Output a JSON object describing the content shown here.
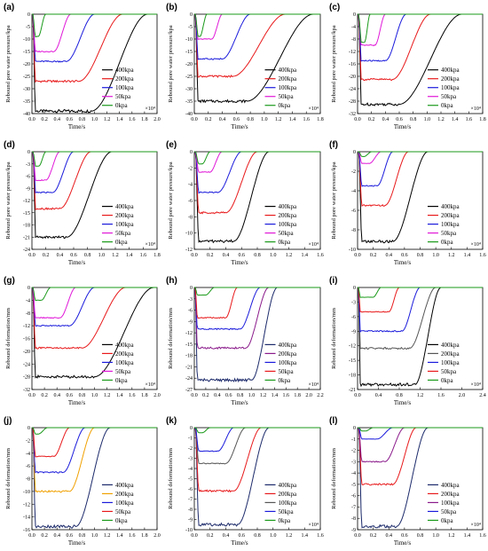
{
  "colors": {
    "400kpa": "#000000",
    "200kpa": "#e8191b",
    "100kpa": "#1b1bdc",
    "50kpa": "#e018d8",
    "0kpa": "#1a9a1a",
    "50kpa_alt": "#f0a000",
    "25kpa_alt": "#888888"
  },
  "chart_data": [
    {
      "panel": "(a)",
      "type": "line",
      "ylabel": "Rebound pore water pressure/kpa",
      "xlabel": "Time/s",
      "x_multiplier": "×10⁴",
      "xlim": [
        0,
        2.0
      ],
      "xticks": [
        "0.0",
        "0.2",
        "0.4",
        "0.6",
        "0.8",
        "1.0",
        "1.2",
        "1.4",
        "1.6",
        "1.8",
        "2.0"
      ],
      "ylim": [
        -40,
        0
      ],
      "yticks": [
        "0",
        "-5",
        "-10",
        "-15",
        "-20",
        "-25",
        "-30",
        "-35",
        "-40"
      ],
      "legend": [
        "400kpa",
        "200kpa",
        "100kpa",
        "50kpa",
        "0kpa"
      ],
      "series": [
        {
          "name": "400kpa",
          "color": "#000000",
          "plateau": -39,
          "rise_start": 0.95,
          "rise_end": 1.85
        },
        {
          "name": "200kpa",
          "color": "#e8191b",
          "plateau": -27,
          "rise_start": 0.75,
          "rise_end": 1.45
        },
        {
          "name": "100kpa",
          "color": "#1b1bdc",
          "plateau": -19,
          "rise_start": 0.55,
          "rise_end": 1.0
        },
        {
          "name": "50kpa",
          "color": "#e018d8",
          "plateau": -15,
          "rise_start": 0.35,
          "rise_end": 0.62
        },
        {
          "name": "0kpa",
          "color": "#1a9a1a",
          "plateau": -9,
          "rise_start": 0.1,
          "rise_end": 0.22
        }
      ]
    },
    {
      "panel": "(b)",
      "type": "line",
      "ylabel": "Rebound pore water pressure/kpa",
      "xlabel": "Time/s",
      "x_multiplier": "×10⁴",
      "xlim": [
        0,
        1.8
      ],
      "xticks": [
        "0.0",
        "0.2",
        "0.4",
        "0.6",
        "0.8",
        "1.0",
        "1.2",
        "1.4",
        "1.6",
        "1.8"
      ],
      "ylim": [
        -40,
        0
      ],
      "yticks": [
        "0",
        "-5",
        "-10",
        "-15",
        "-20",
        "-25",
        "-30",
        "-35",
        "-40"
      ],
      "legend": [
        "400kpa",
        "200kpa",
        "100kpa",
        "50kpa",
        "0kpa"
      ],
      "series": [
        {
          "name": "400kpa",
          "color": "#000000",
          "plateau": -35,
          "rise_start": 0.75,
          "rise_end": 1.7
        },
        {
          "name": "200kpa",
          "color": "#e8191b",
          "plateau": -25,
          "rise_start": 0.55,
          "rise_end": 1.3
        },
        {
          "name": "100kpa",
          "color": "#1b1bdc",
          "plateau": -18,
          "rise_start": 0.4,
          "rise_end": 0.8
        },
        {
          "name": "50kpa",
          "color": "#e018d8",
          "plateau": -10,
          "rise_start": 0.25,
          "rise_end": 0.4
        },
        {
          "name": "0kpa",
          "color": "#1a9a1a",
          "plateau": -9,
          "rise_start": 0.08,
          "rise_end": 0.18
        }
      ]
    },
    {
      "panel": "(c)",
      "type": "line",
      "ylabel": "Rebound pore water pressure/kpa",
      "xlabel": "Time/s",
      "x_multiplier": "×10⁴",
      "xlim": [
        0,
        1.8
      ],
      "xticks": [
        "0.0",
        "0.2",
        "0.4",
        "0.6",
        "0.8",
        "1.0",
        "1.2",
        "1.4",
        "1.6",
        "1.8"
      ],
      "ylim": [
        -32,
        0
      ],
      "yticks": [
        "0",
        "-4",
        "-8",
        "-12",
        "-16",
        "-20",
        "-24",
        "-28",
        "-32"
      ],
      "legend": [
        "400kpa",
        "200kpa",
        "100kpa",
        "50kpa",
        "0kpa"
      ],
      "series": [
        {
          "name": "400kpa",
          "color": "#000000",
          "plateau": -29,
          "rise_start": 0.6,
          "rise_end": 1.5
        },
        {
          "name": "200kpa",
          "color": "#e8191b",
          "plateau": -21,
          "rise_start": 0.5,
          "rise_end": 1.05
        },
        {
          "name": "100kpa",
          "color": "#1b1bdc",
          "plateau": -15,
          "rise_start": 0.4,
          "rise_end": 0.7
        },
        {
          "name": "50kpa",
          "color": "#e018d8",
          "plateau": -10,
          "rise_start": 0.25,
          "rise_end": 0.4
        },
        {
          "name": "0kpa",
          "color": "#1a9a1a",
          "plateau": -9,
          "rise_start": 0.1,
          "rise_end": 0.18
        }
      ]
    },
    {
      "panel": "(d)",
      "type": "line",
      "ylabel": "Rebound pore water pressure/kpa",
      "xlabel": "Time/s",
      "x_multiplier": "×10⁴",
      "xlim": [
        0,
        1.8
      ],
      "xticks": [
        "0.0",
        "0.2",
        "0.4",
        "0.6",
        "0.8",
        "1.0",
        "1.2",
        "1.4",
        "1.6",
        "1.8"
      ],
      "ylim": [
        -24,
        0
      ],
      "yticks": [
        "0",
        "-3",
        "-6",
        "-9",
        "-12",
        "-15",
        "-18",
        "-21",
        "-24"
      ],
      "legend": [
        "400kpa",
        "200kpa",
        "100kpa",
        "50kpa",
        "0kpa"
      ],
      "series": [
        {
          "name": "400kpa",
          "color": "#000000",
          "plateau": -21,
          "rise_start": 0.5,
          "rise_end": 1.15
        },
        {
          "name": "200kpa",
          "color": "#e8191b",
          "plateau": -14,
          "rise_start": 0.4,
          "rise_end": 0.85
        },
        {
          "name": "100kpa",
          "color": "#1b1bdc",
          "plateau": -10,
          "rise_start": 0.3,
          "rise_end": 0.6
        },
        {
          "name": "50kpa",
          "color": "#e018d8",
          "plateau": -7,
          "rise_start": 0.2,
          "rise_end": 0.4
        },
        {
          "name": "0kpa",
          "color": "#1a9a1a",
          "plateau": -3.5,
          "rise_start": 0.1,
          "rise_end": 0.2
        }
      ]
    },
    {
      "panel": "(e)",
      "type": "line",
      "ylabel": "Rebound pore water pressure/kpa",
      "xlabel": "Time/s",
      "x_multiplier": "×10⁴",
      "xlim": [
        0,
        1.6
      ],
      "xticks": [
        "0.0",
        "0.2",
        "0.4",
        "0.6",
        "0.8",
        "1.0",
        "1.2",
        "1.4",
        "1.6"
      ],
      "ylim": [
        -12,
        0
      ],
      "yticks": [
        "0",
        "-2",
        "-4",
        "-6",
        "-8",
        "-10",
        "-12"
      ],
      "legend": [
        "400kpa",
        "200kpa",
        "100kpa",
        "50kpa",
        "0kpa"
      ],
      "series": [
        {
          "name": "400kpa",
          "color": "#000000",
          "plateau": -11,
          "rise_start": 0.5,
          "rise_end": 0.95
        },
        {
          "name": "200kpa",
          "color": "#e8191b",
          "plateau": -7.5,
          "rise_start": 0.4,
          "rise_end": 0.8
        },
        {
          "name": "100kpa",
          "color": "#1b1bdc",
          "plateau": -5,
          "rise_start": 0.3,
          "rise_end": 0.6
        },
        {
          "name": "50kpa",
          "color": "#e018d8",
          "plateau": -2.5,
          "rise_start": 0.2,
          "rise_end": 0.35
        },
        {
          "name": "0kpa",
          "color": "#1a9a1a",
          "plateau": -1.5,
          "rise_start": 0.1,
          "rise_end": 0.2
        }
      ]
    },
    {
      "panel": "(f)",
      "type": "line",
      "ylabel": "Rebound pore water pressure/kpa",
      "xlabel": "Time/s",
      "x_multiplier": "×10⁴",
      "xlim": [
        0,
        1.6
      ],
      "xticks": [
        "0.0",
        "0.2",
        "0.4",
        "0.6",
        "0.8",
        "1.0",
        "1.2",
        "1.4",
        "1.6"
      ],
      "ylim": [
        -10,
        0
      ],
      "yticks": [
        "0",
        "-2",
        "-4",
        "-6",
        "-8",
        "-10"
      ],
      "legend": [
        "400kpa",
        "200kpa",
        "100kpa",
        "50kpa",
        "0kpa"
      ],
      "series": [
        {
          "name": "400kpa",
          "color": "#000000",
          "plateau": -9.2,
          "rise_start": 0.45,
          "rise_end": 0.9
        },
        {
          "name": "200kpa",
          "color": "#e8191b",
          "plateau": -5.5,
          "rise_start": 0.35,
          "rise_end": 0.65
        },
        {
          "name": "100kpa",
          "color": "#1b1bdc",
          "plateau": -3.5,
          "rise_start": 0.25,
          "rise_end": 0.45
        },
        {
          "name": "50kpa",
          "color": "#e018d8",
          "plateau": -1.2,
          "rise_start": 0.15,
          "rise_end": 0.3
        },
        {
          "name": "0kpa",
          "color": "#1a9a1a",
          "plateau": -0.5,
          "rise_start": 0.08,
          "rise_end": 0.18
        }
      ]
    },
    {
      "panel": "(g)",
      "type": "line",
      "ylabel": "Rebound deformation/mm",
      "xlabel": "Time/s",
      "x_multiplier": "×10⁴",
      "xlim": [
        0,
        2.0
      ],
      "xticks": [
        "0.0",
        "0.2",
        "0.4",
        "0.6",
        "0.8",
        "1.0",
        "1.2",
        "1.4",
        "1.6",
        "1.8",
        "2.0"
      ],
      "ylim": [
        -32,
        0
      ],
      "yticks": [
        "0",
        "-4",
        "-8",
        "-12",
        "-16",
        "-20",
        "-24",
        "-28",
        "-32"
      ],
      "legend": [
        "400kpa",
        "200kpa",
        "100kpa",
        "50kpa",
        "0kpa"
      ],
      "series": [
        {
          "name": "400kpa",
          "color": "#000000",
          "plateau": -28,
          "rise_start": 1.0,
          "rise_end": 1.95
        },
        {
          "name": "200kpa",
          "color": "#e8191b",
          "plateau": -19,
          "rise_start": 0.8,
          "rise_end": 1.5
        },
        {
          "name": "100kpa",
          "color": "#1b1bdc",
          "plateau": -12,
          "rise_start": 0.6,
          "rise_end": 1.0
        },
        {
          "name": "50kpa",
          "color": "#e018d8",
          "plateau": -9.5,
          "rise_start": 0.45,
          "rise_end": 0.7
        },
        {
          "name": "0kpa",
          "color": "#1a9a1a",
          "plateau": -4,
          "rise_start": 0.15,
          "rise_end": 0.3
        }
      ]
    },
    {
      "panel": "(h)",
      "type": "line",
      "ylabel": "Rebound deformation/mm",
      "xlabel": "Time/s",
      "x_multiplier": "×10⁴",
      "xlim": [
        0,
        2.2
      ],
      "xticks": [
        "0.0",
        "0.2",
        "0.4",
        "0.6",
        "0.8",
        "1.0",
        "1.2",
        "1.4",
        "1.6",
        "1.8",
        "2.0",
        "2.2"
      ],
      "ylim": [
        -27,
        0
      ],
      "yticks": [
        "0",
        "-3",
        "-6",
        "-9",
        "-12",
        "-15",
        "-18",
        "-21",
        "-24",
        "-27"
      ],
      "legend": [
        "400kpa",
        "200kpa",
        "100kpa",
        "50kpa",
        "0kpa"
      ],
      "series": [
        {
          "name": "400kpa",
          "color": "#1c2a6a",
          "plateau": -24.5,
          "rise_start": 1.0,
          "rise_end": 1.45
        },
        {
          "name": "200kpa",
          "color": "#8a1a8a",
          "plateau": -16,
          "rise_start": 0.9,
          "rise_end": 1.3
        },
        {
          "name": "100kpa",
          "color": "#1b1bdc",
          "plateau": -11,
          "rise_start": 0.8,
          "rise_end": 1.15
        },
        {
          "name": "50kpa",
          "color": "#e8191b",
          "plateau": -8,
          "rise_start": 0.55,
          "rise_end": 0.75
        },
        {
          "name": "0kpa",
          "color": "#1a9a1a",
          "plateau": -2,
          "rise_start": 0.2,
          "rise_end": 0.35
        }
      ]
    },
    {
      "panel": "(i)",
      "type": "line",
      "ylabel": "Rebound deformation/mm",
      "xlabel": "Time/s",
      "x_multiplier": "×10⁴",
      "xlim": [
        0,
        2.4
      ],
      "xticks": [
        "0.0",
        "0.4",
        "0.8",
        "1.2",
        "1.6",
        "2.0",
        "2.4"
      ],
      "ylim": [
        -21,
        0
      ],
      "yticks": [
        "0",
        "-3",
        "-6",
        "-9",
        "-12",
        "-15",
        "-18",
        "-21"
      ],
      "legend": [
        "400kpa",
        "200kpa",
        "100kpa",
        "50kpa",
        "0kpa"
      ],
      "series": [
        {
          "name": "400kpa",
          "color": "#000000",
          "plateau": -20,
          "rise_start": 1.1,
          "rise_end": 1.6
        },
        {
          "name": "200kpa",
          "color": "#555555",
          "plateau": -12.5,
          "rise_start": 1.0,
          "rise_end": 1.5
        },
        {
          "name": "100kpa",
          "color": "#1b1bdc",
          "plateau": -9,
          "rise_start": 0.85,
          "rise_end": 1.2
        },
        {
          "name": "50kpa",
          "color": "#e8191b",
          "plateau": -5,
          "rise_start": 0.6,
          "rise_end": 0.8
        },
        {
          "name": "0kpa",
          "color": "#1a9a1a",
          "plateau": -2,
          "rise_start": 0.3,
          "rise_end": 0.45
        }
      ]
    },
    {
      "panel": "(j)",
      "type": "line",
      "ylabel": "Rebound deformation/mm",
      "xlabel": "Time/s",
      "x_multiplier": "",
      "xlim": [
        0,
        2.0
      ],
      "xticks": [
        "0.0",
        "0.2",
        "0.4",
        "0.6",
        "0.8",
        "1.0",
        "1.2",
        "1.4",
        "1.6",
        "1.8",
        "2.0"
      ],
      "ylim": [
        -16,
        0
      ],
      "yticks": [
        "0",
        "-2",
        "-4",
        "-6",
        "-8",
        "-10",
        "-12",
        "-14",
        "-16"
      ],
      "legend": [
        "400kpa",
        "200kpa",
        "100kpa",
        "50kpa",
        "0kpa"
      ],
      "series": [
        {
          "name": "400kpa",
          "color": "#1c2a6a",
          "plateau": -15.5,
          "rise_start": 0.7,
          "rise_end": 1.25
        },
        {
          "name": "200kpa",
          "color": "#f0a000",
          "plateau": -10,
          "rise_start": 0.6,
          "rise_end": 1.0
        },
        {
          "name": "100kpa",
          "color": "#1b1bdc",
          "plateau": -7,
          "rise_start": 0.5,
          "rise_end": 0.85
        },
        {
          "name": "50kpa",
          "color": "#e8191b",
          "plateau": -4.5,
          "rise_start": 0.35,
          "rise_end": 0.6
        },
        {
          "name": "0kpa",
          "color": "#1a9a1a",
          "plateau": -1,
          "rise_start": 0.1,
          "rise_end": 0.25
        }
      ]
    },
    {
      "panel": "(k)",
      "type": "line",
      "ylabel": "Rebound deformation/mm",
      "xlabel": "Time/s",
      "x_multiplier": "×10⁴",
      "xlim": [
        0,
        1.6
      ],
      "xticks": [
        "0.0",
        "0.2",
        "0.4",
        "0.6",
        "0.8",
        "1.0",
        "1.2",
        "1.4",
        "1.6"
      ],
      "ylim": [
        -10,
        0
      ],
      "yticks": [
        "0",
        "-1",
        "-2",
        "-3",
        "-4",
        "-5",
        "-6",
        "-7",
        "-8",
        "-9",
        "-10"
      ],
      "legend": [
        "400kpa",
        "200kpa",
        "100kpa",
        "50kpa",
        "0kpa"
      ],
      "series": [
        {
          "name": "400kpa",
          "color": "#1c2a6a",
          "plateau": -9.5,
          "rise_start": 0.55,
          "rise_end": 0.95
        },
        {
          "name": "200kpa",
          "color": "#e8191b",
          "plateau": -6.2,
          "rise_start": 0.5,
          "rise_end": 0.85
        },
        {
          "name": "100kpa",
          "color": "#555555",
          "plateau": -3.5,
          "rise_start": 0.4,
          "rise_end": 0.65
        },
        {
          "name": "50kpa",
          "color": "#1b1bdc",
          "plateau": -2.3,
          "rise_start": 0.3,
          "rise_end": 0.5
        },
        {
          "name": "0kpa",
          "color": "#1a9a1a",
          "plateau": -0.5,
          "rise_start": 0.1,
          "rise_end": 0.2
        }
      ]
    },
    {
      "panel": "(l)",
      "type": "line",
      "ylabel": "Rebound deformation/mm",
      "xlabel": "Time/s",
      "x_multiplier": "×10⁴",
      "xlim": [
        0,
        1.6
      ],
      "xticks": [
        "0.0",
        "0.2",
        "0.4",
        "0.6",
        "0.8",
        "1.0",
        "1.2",
        "1.4",
        "1.6"
      ],
      "ylim": [
        -9,
        0
      ],
      "yticks": [
        "0",
        "-1",
        "-2",
        "-3",
        "-4",
        "-5",
        "-6",
        "-7",
        "-8",
        "-9"
      ],
      "legend": [
        "400kpa",
        "200kpa",
        "100kpa",
        "50kpa",
        "0kpa"
      ],
      "series": [
        {
          "name": "400kpa",
          "color": "#1c2a6a",
          "plateau": -8.7,
          "rise_start": 0.5,
          "rise_end": 0.9
        },
        {
          "name": "200kpa",
          "color": "#e8191b",
          "plateau": -5,
          "rise_start": 0.45,
          "rise_end": 0.75
        },
        {
          "name": "100kpa",
          "color": "#8a1a8a",
          "plateau": -3,
          "rise_start": 0.35,
          "rise_end": 0.6
        },
        {
          "name": "50kpa",
          "color": "#1b1bdc",
          "plateau": -1,
          "rise_start": 0.25,
          "rise_end": 0.45
        },
        {
          "name": "0kpa",
          "color": "#1a9a1a",
          "plateau": -0.3,
          "rise_start": 0.1,
          "rise_end": 0.2
        }
      ]
    }
  ]
}
